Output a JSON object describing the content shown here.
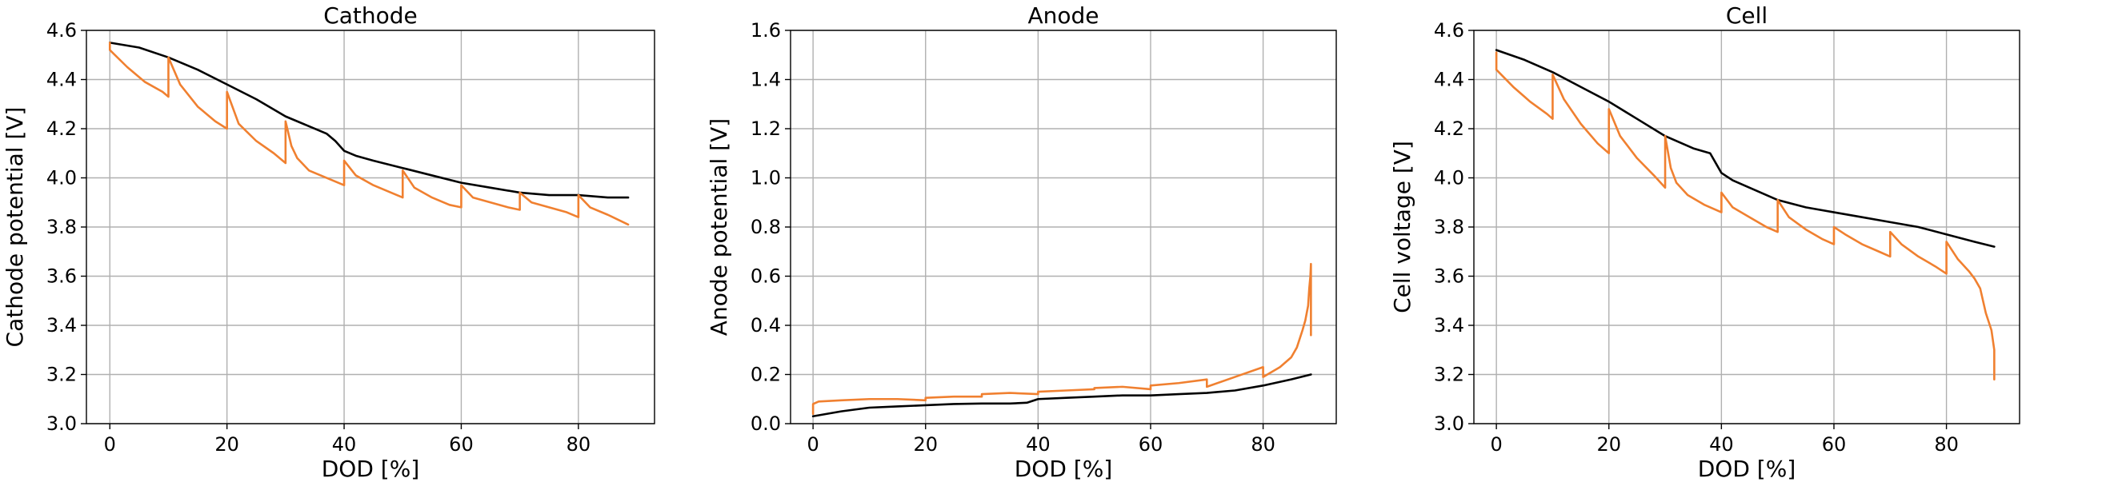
{
  "chart_data": [
    {
      "type": "line",
      "title": "Cathode",
      "xlabel": "DOD [%]",
      "ylabel": "Cathode potential [V]",
      "xlim": [
        -4,
        93
      ],
      "ylim": [
        3.0,
        4.6
      ],
      "xticks": [
        0,
        20,
        40,
        60,
        80
      ],
      "yticks": [
        3.0,
        3.2,
        3.4,
        3.6,
        3.8,
        4.0,
        4.2,
        4.4,
        4.6
      ],
      "xtick_labels": [
        "0",
        "20",
        "40",
        "60",
        "80"
      ],
      "ytick_labels": [
        "3.0",
        "3.2",
        "3.4",
        "3.6",
        "3.8",
        "4.0",
        "4.2",
        "4.4",
        "4.6"
      ],
      "grid": true,
      "series": [
        {
          "color": "#000000",
          "x": [
            0,
            5,
            10,
            15,
            20,
            25,
            30,
            34,
            37,
            38.5,
            40,
            42,
            45,
            50,
            55,
            60,
            65,
            70,
            75,
            80,
            85,
            88.5
          ],
          "y": [
            4.55,
            4.53,
            4.49,
            4.44,
            4.38,
            4.32,
            4.25,
            4.21,
            4.18,
            4.15,
            4.11,
            4.09,
            4.07,
            4.04,
            4.01,
            3.98,
            3.96,
            3.94,
            3.93,
            3.93,
            3.92,
            3.92
          ]
        },
        {
          "color": "#f08030",
          "x": [
            0,
            0,
            3,
            6,
            9,
            10,
            10,
            12,
            15,
            18,
            20,
            20,
            22,
            25,
            28,
            30,
            30,
            31,
            32,
            34,
            36,
            38,
            40,
            40,
            42,
            45,
            48,
            50,
            50,
            52,
            55,
            58,
            60,
            60,
            62,
            65,
            68,
            70,
            70,
            72,
            75,
            78,
            80,
            80,
            82,
            85,
            88.5
          ],
          "y": [
            4.55,
            4.52,
            4.45,
            4.39,
            4.35,
            4.33,
            4.49,
            4.38,
            4.29,
            4.23,
            4.2,
            4.35,
            4.22,
            4.15,
            4.1,
            4.06,
            4.23,
            4.13,
            4.08,
            4.03,
            4.01,
            3.99,
            3.97,
            4.07,
            4.01,
            3.97,
            3.94,
            3.92,
            4.03,
            3.96,
            3.92,
            3.89,
            3.88,
            3.97,
            3.92,
            3.9,
            3.88,
            3.87,
            3.94,
            3.9,
            3.88,
            3.86,
            3.84,
            3.93,
            3.88,
            3.85,
            3.81
          ]
        }
      ]
    },
    {
      "type": "line",
      "title": "Anode",
      "xlabel": "DOD [%]",
      "ylabel": "Anode potential [V]",
      "xlim": [
        -4,
        93
      ],
      "ylim": [
        0.0,
        1.6
      ],
      "xticks": [
        0,
        20,
        40,
        60,
        80
      ],
      "yticks": [
        0.0,
        0.2,
        0.4,
        0.6,
        0.8,
        1.0,
        1.2,
        1.4,
        1.6
      ],
      "xtick_labels": [
        "0",
        "20",
        "40",
        "60",
        "80"
      ],
      "ytick_labels": [
        "0.0",
        "0.2",
        "0.4",
        "0.6",
        "0.8",
        "1.0",
        "1.2",
        "1.4",
        "1.6"
      ],
      "grid": true,
      "series": [
        {
          "color": "#000000",
          "x": [
            0,
            5,
            10,
            15,
            20,
            25,
            30,
            35,
            38,
            40,
            45,
            50,
            55,
            60,
            65,
            70,
            75,
            80,
            85,
            88.5
          ],
          "y": [
            0.03,
            0.05,
            0.065,
            0.07,
            0.075,
            0.08,
            0.082,
            0.082,
            0.085,
            0.1,
            0.105,
            0.11,
            0.115,
            0.115,
            0.12,
            0.125,
            0.135,
            0.155,
            0.18,
            0.2
          ]
        },
        {
          "color": "#f08030",
          "x": [
            0,
            0,
            1,
            5,
            10,
            15,
            20,
            20,
            25,
            30,
            30,
            35,
            40,
            40,
            45,
            50,
            50,
            55,
            60,
            60,
            65,
            70,
            70,
            75,
            80,
            80,
            83,
            85,
            86,
            87,
            87.5,
            88,
            88.2,
            88.4,
            88.5,
            88.5
          ],
          "y": [
            0.04,
            0.08,
            0.09,
            0.095,
            0.1,
            0.1,
            0.095,
            0.105,
            0.11,
            0.11,
            0.12,
            0.125,
            0.12,
            0.13,
            0.135,
            0.14,
            0.145,
            0.15,
            0.14,
            0.155,
            0.165,
            0.18,
            0.15,
            0.19,
            0.23,
            0.19,
            0.23,
            0.27,
            0.31,
            0.38,
            0.42,
            0.48,
            0.55,
            0.6,
            0.65,
            0.36
          ]
        }
      ]
    },
    {
      "type": "line",
      "title": "Cell",
      "xlabel": "DOD [%]",
      "ylabel": "Cell voltage [V]",
      "xlim": [
        -4,
        93
      ],
      "ylim": [
        3.0,
        4.6
      ],
      "xticks": [
        0,
        20,
        40,
        60,
        80
      ],
      "yticks": [
        3.0,
        3.2,
        3.4,
        3.6,
        3.8,
        4.0,
        4.2,
        4.4,
        4.6
      ],
      "xtick_labels": [
        "0",
        "20",
        "40",
        "60",
        "80"
      ],
      "ytick_labels": [
        "3.0",
        "3.2",
        "3.4",
        "3.6",
        "3.8",
        "4.0",
        "4.2",
        "4.4",
        "4.6"
      ],
      "grid": true,
      "series": [
        {
          "color": "#000000",
          "x": [
            0,
            5,
            10,
            15,
            20,
            25,
            30,
            35,
            38,
            39,
            40,
            42,
            45,
            50,
            55,
            60,
            65,
            70,
            75,
            80,
            85,
            88.5
          ],
          "y": [
            4.52,
            4.48,
            4.43,
            4.37,
            4.31,
            4.24,
            4.17,
            4.12,
            4.1,
            4.06,
            4.02,
            3.99,
            3.96,
            3.91,
            3.88,
            3.86,
            3.84,
            3.82,
            3.8,
            3.77,
            3.74,
            3.72
          ]
        },
        {
          "color": "#f08030",
          "x": [
            0,
            0,
            3,
            6,
            9,
            10,
            10,
            12,
            15,
            18,
            20,
            20,
            22,
            25,
            28,
            30,
            30,
            31,
            32,
            34,
            37,
            40,
            40,
            42,
            45,
            48,
            50,
            50,
            52,
            55,
            58,
            60,
            60,
            62,
            65,
            68,
            70,
            70,
            72,
            75,
            78,
            80,
            80,
            82,
            84,
            85,
            86,
            87,
            88,
            88.5,
            88.5
          ],
          "y": [
            4.51,
            4.44,
            4.37,
            4.31,
            4.26,
            4.24,
            4.42,
            4.32,
            4.22,
            4.14,
            4.1,
            4.28,
            4.17,
            4.08,
            4.01,
            3.96,
            4.17,
            4.04,
            3.98,
            3.93,
            3.89,
            3.86,
            3.94,
            3.88,
            3.84,
            3.8,
            3.78,
            3.91,
            3.84,
            3.79,
            3.75,
            3.73,
            3.8,
            3.77,
            3.73,
            3.7,
            3.68,
            3.78,
            3.73,
            3.68,
            3.64,
            3.61,
            3.74,
            3.67,
            3.62,
            3.59,
            3.55,
            3.45,
            3.38,
            3.3,
            3.18
          ]
        }
      ]
    }
  ]
}
